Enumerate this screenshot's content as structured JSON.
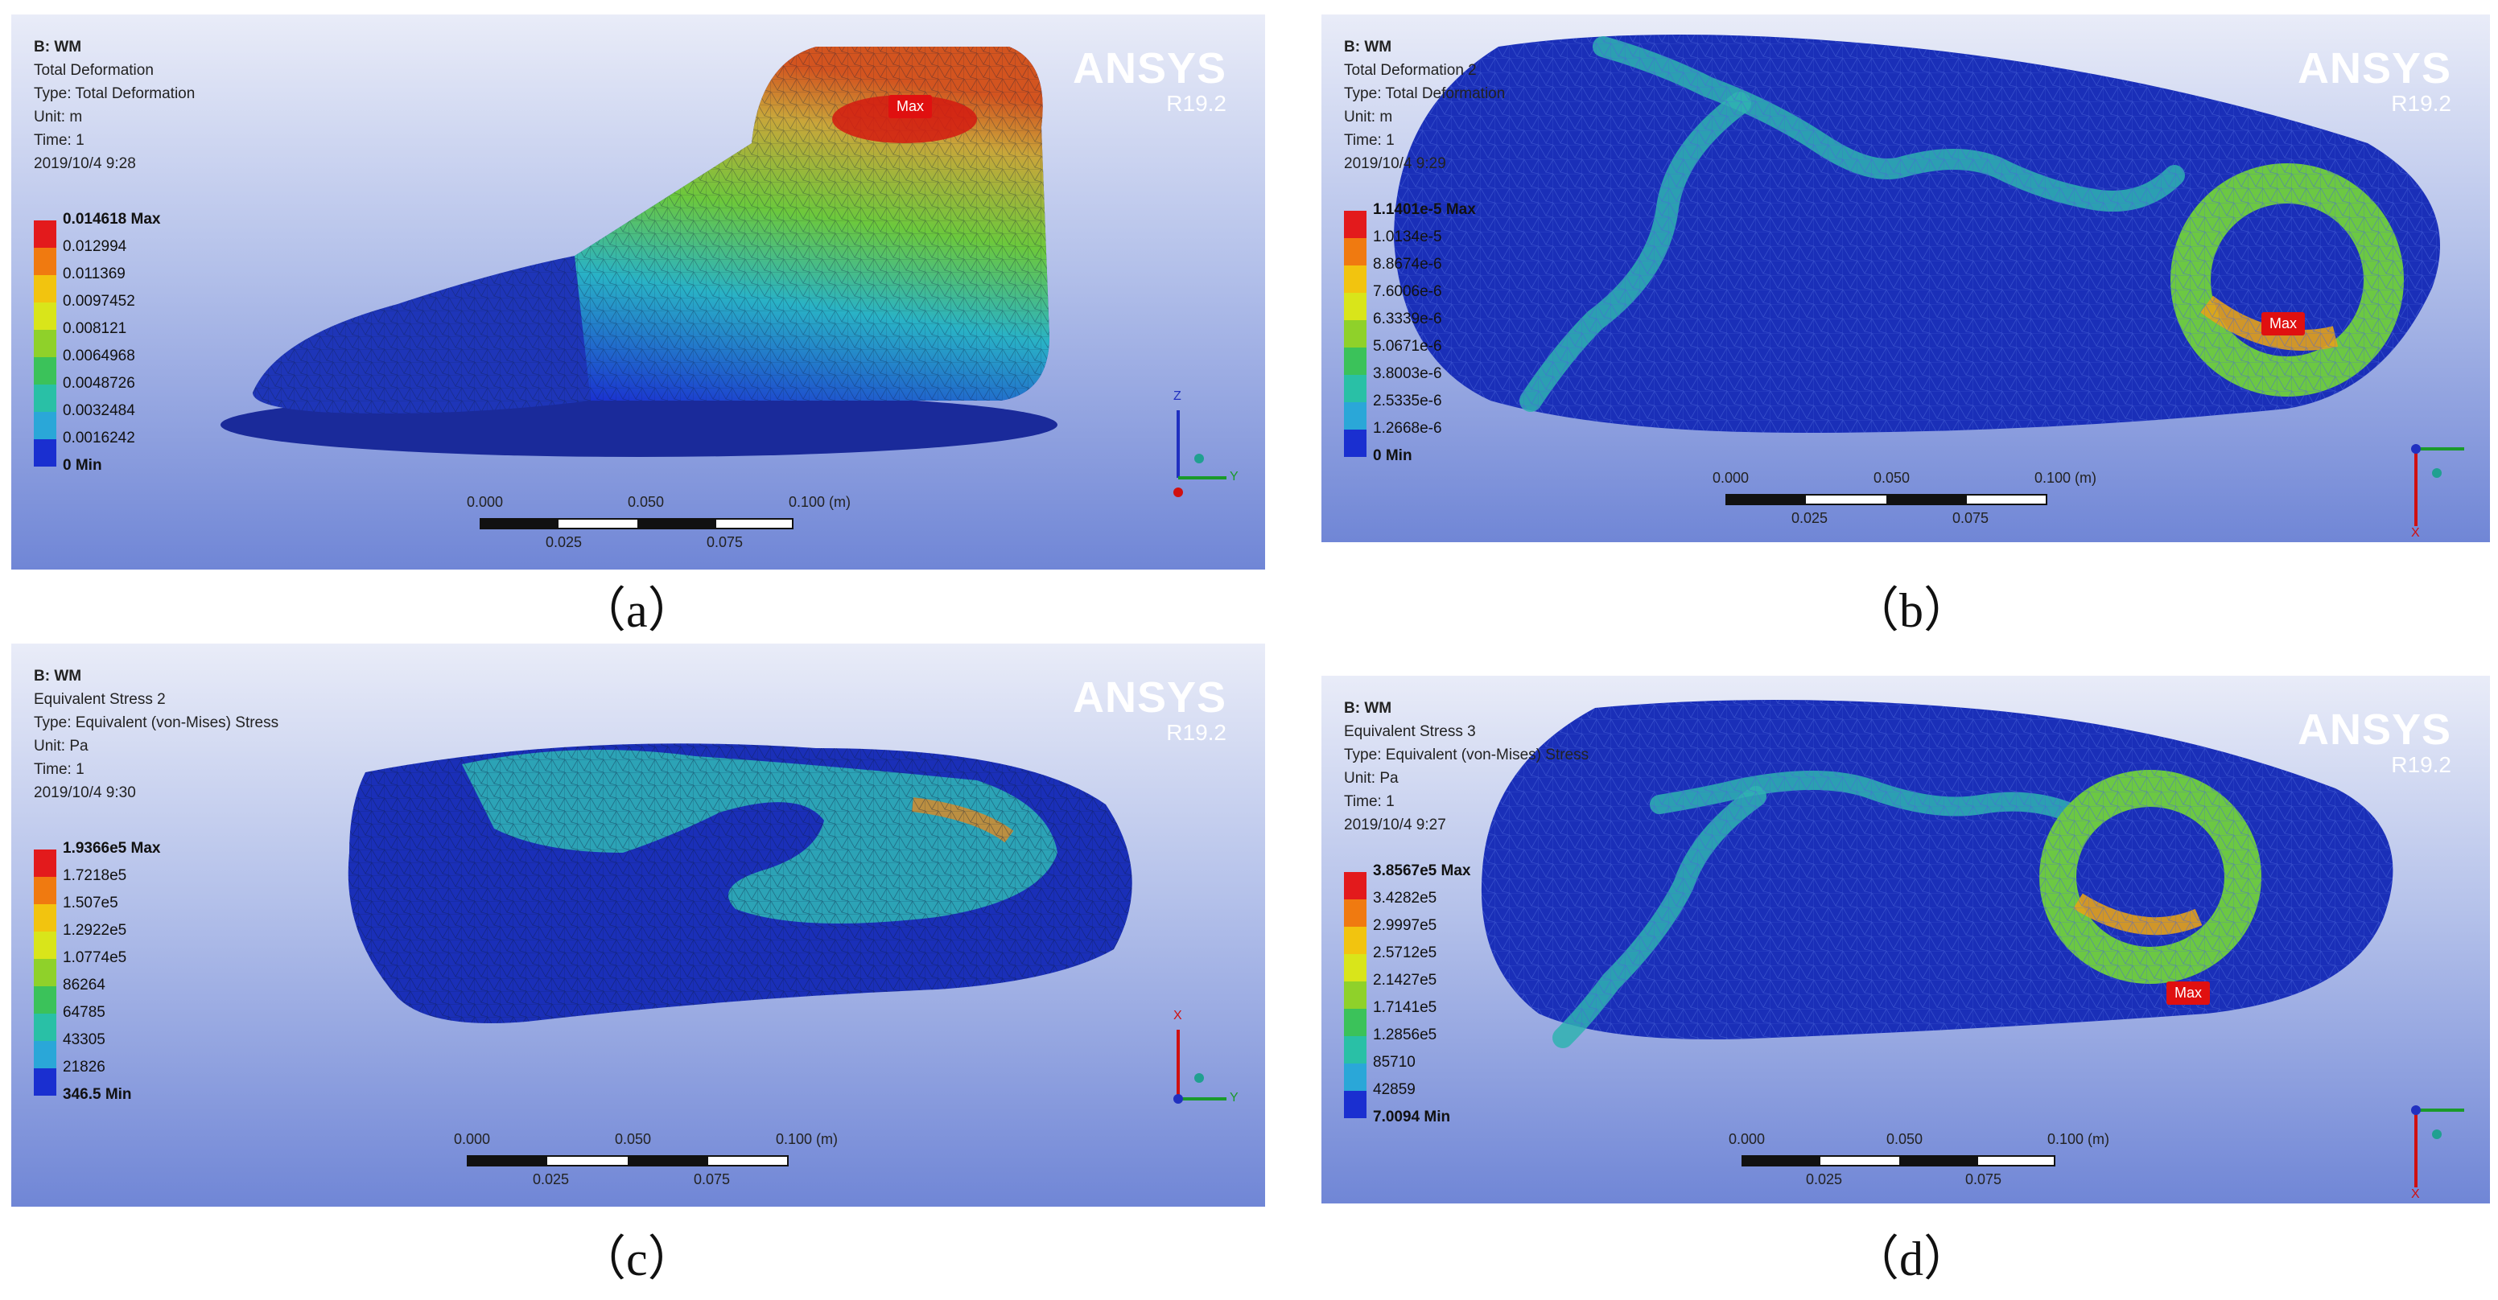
{
  "panels": {
    "a": {
      "info": [
        "B: WM",
        "Total Deformation",
        "Type: Total Deformation",
        "Unit: m",
        "Time: 1",
        "2019/10/4 9:28"
      ],
      "legend": [
        "0.014618 Max",
        "0.012994",
        "0.011369",
        "0.0097452",
        "0.008121",
        "0.0064968",
        "0.0048726",
        "0.0032484",
        "0.0016242",
        "0 Min"
      ],
      "scale_top": [
        "0.000",
        "0.050",
        "0.100 (m)"
      ],
      "scale_bottom": [
        "0.025",
        "0.075"
      ],
      "max_label": "Max",
      "axes": [
        "Z",
        "Y"
      ],
      "caption": "（a）"
    },
    "b": {
      "info": [
        "B: WM",
        "Total Deformation 2",
        "Type: Total Deformation",
        "Unit: m",
        "Time: 1",
        "2019/10/4 9:29"
      ],
      "legend": [
        "1.1401e-5 Max",
        "1.0134e-5",
        "8.8674e-6",
        "7.6006e-6",
        "6.3339e-6",
        "5.0671e-6",
        "3.8003e-6",
        "2.5335e-6",
        "1.2668e-6",
        "0 Min"
      ],
      "scale_top": [
        "0.000",
        "0.050",
        "0.100 (m)"
      ],
      "scale_bottom": [
        "0.025",
        "0.075"
      ],
      "max_label": "Max",
      "axes": [
        "X"
      ],
      "caption": "（b）"
    },
    "c": {
      "info": [
        "B: WM",
        "Equivalent Stress 2",
        "Type: Equivalent (von-Mises) Stress",
        "Unit: Pa",
        "Time: 1",
        "2019/10/4 9:30"
      ],
      "legend": [
        "1.9366e5 Max",
        "1.7218e5",
        "1.507e5",
        "1.2922e5",
        "1.0774e5",
        "86264",
        "64785",
        "43305",
        "21826",
        "346.5 Min"
      ],
      "scale_top": [
        "0.000",
        "0.050",
        "0.100 (m)"
      ],
      "scale_bottom": [
        "0.025",
        "0.075"
      ],
      "max_label": "",
      "axes": [
        "X",
        "Y"
      ],
      "caption": "（c）"
    },
    "d": {
      "info": [
        "B: WM",
        "Equivalent Stress 3",
        "Type: Equivalent (von-Mises) Stress",
        "Unit: Pa",
        "Time: 1",
        "2019/10/4 9:27"
      ],
      "legend": [
        "3.8567e5 Max",
        "3.4282e5",
        "2.9997e5",
        "2.5712e5",
        "2.1427e5",
        "1.7141e5",
        "1.2856e5",
        "85710",
        "42859",
        "7.0094 Min"
      ],
      "scale_top": [
        "0.000",
        "0.050",
        "0.100 (m)"
      ],
      "scale_bottom": [
        "0.025",
        "0.075"
      ],
      "max_label": "Max",
      "axes": [
        "X"
      ],
      "caption": "（d）"
    }
  },
  "brand": {
    "name": "ANSYS",
    "version": "R19.2"
  },
  "legend_colors": [
    "#e31a1c",
    "#f07a10",
    "#f2c40f",
    "#d9e51a",
    "#8fd12a",
    "#3bc25a",
    "#29c0a6",
    "#2aa7d8",
    "#1f6fe0",
    "#1a2fd0"
  ],
  "icons": [
    "axis-triad-icon"
  ]
}
